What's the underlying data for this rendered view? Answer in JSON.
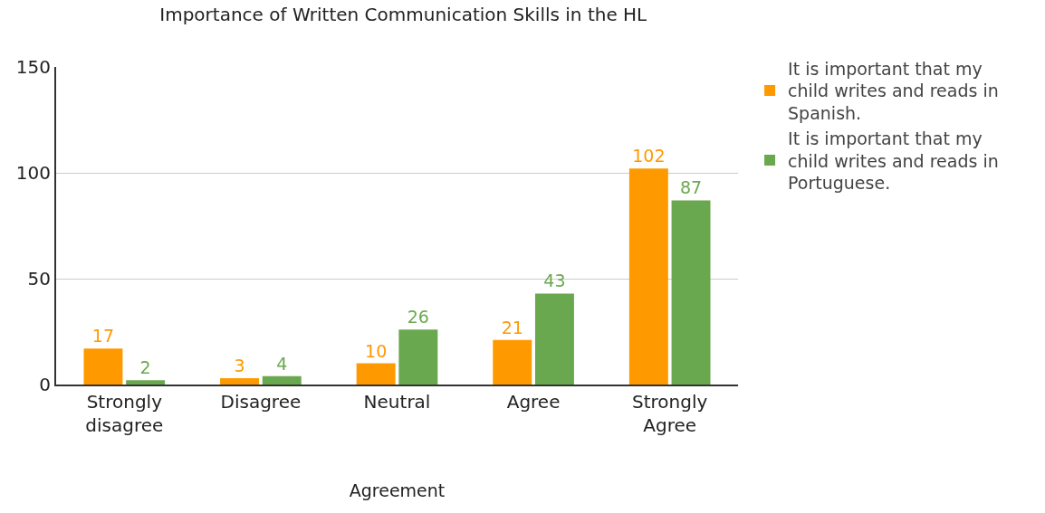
{
  "chart_data": {
    "type": "bar",
    "title": "Importance of Written Communication Skills in the HL",
    "xlabel": "Agreement",
    "categories": [
      "Strongly disagree",
      "Disagree",
      "Neutral",
      "Agree",
      "Strongly Agree"
    ],
    "series": [
      {
        "name": "It is important that my child writes and reads in Spanish.",
        "color": "#ff9900",
        "values": [
          17,
          3,
          10,
          21,
          102
        ]
      },
      {
        "name": "It is important that my child writes and reads in Portuguese.",
        "color": "#6aa84f",
        "values": [
          2,
          4,
          26,
          43,
          87
        ]
      }
    ],
    "ylim": [
      0,
      150
    ],
    "yticks": [
      0,
      50,
      100,
      150
    ],
    "grid": "y",
    "legend": "top right",
    "data_labels": true
  }
}
